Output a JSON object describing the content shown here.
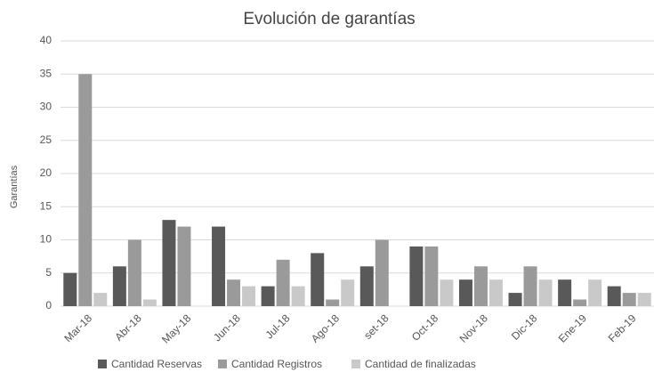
{
  "chart_data": {
    "type": "bar",
    "title": "Evolución de garantías",
    "y_label": "Garantías",
    "categories": [
      "Mar-18",
      "Abr-18",
      "May-18",
      "Jun-18",
      "Jul-18",
      "Ago-18",
      "set-18",
      "Oct-18",
      "Nov-18",
      "Dic-18",
      "Ene-19",
      "Feb-19"
    ],
    "series": [
      {
        "name": "Cantidad Reservas",
        "color": "#595959",
        "values": [
          5,
          6,
          13,
          12,
          3,
          8,
          6,
          9,
          4,
          2,
          4,
          3
        ]
      },
      {
        "name": "Cantidad Registros",
        "color": "#9a9a9a",
        "values": [
          35,
          10,
          12,
          4,
          7,
          1,
          10,
          9,
          6,
          6,
          1,
          2
        ]
      },
      {
        "name": "Cantidad de finalizadas",
        "color": "#c9c9c9",
        "values": [
          2,
          1,
          0,
          3,
          3,
          4,
          0,
          4,
          4,
          4,
          4,
          2
        ]
      }
    ],
    "ylim": [
      0,
      40
    ],
    "yticks": [
      0,
      5,
      10,
      15,
      20,
      25,
      30,
      35,
      40
    ],
    "grid": true,
    "legend": "bottom"
  }
}
